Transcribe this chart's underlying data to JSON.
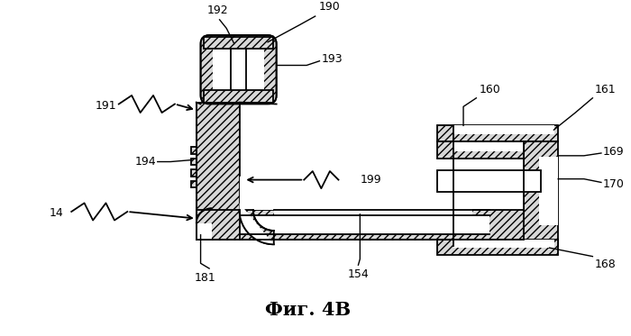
{
  "title": "Фиг. 4B",
  "background_color": "#ffffff",
  "line_color": "#000000",
  "figsize": [
    7.0,
    3.73
  ],
  "dpi": 100,
  "hatch": "////",
  "fs": 9
}
